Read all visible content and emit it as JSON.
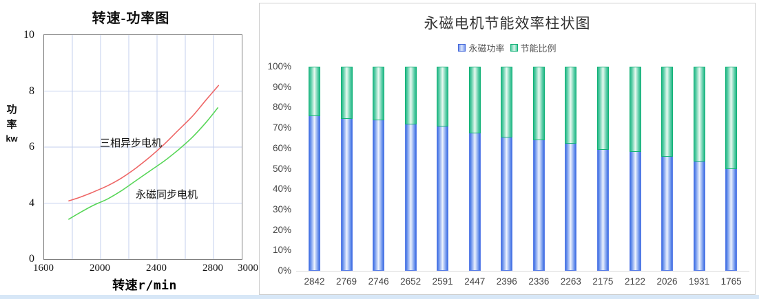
{
  "page": {
    "bottom_strip_color": "#d7e7f7",
    "card_border_color": "#cfcfcf"
  },
  "chart_data": [
    {
      "type": "line",
      "title": "转速-功率图",
      "xlabel": "转速r/min",
      "ylabel": "功率kw",
      "ylabel_chars": [
        "功",
        "率",
        "kw"
      ],
      "xlim": [
        1600,
        3000
      ],
      "x_ticks": [
        1600,
        2000,
        2400,
        2800,
        3000
      ],
      "y_ticks": [
        10,
        8,
        6,
        4,
        0
      ],
      "grid": true,
      "grid_color": "#c3cfee",
      "grid_x_lines": [
        1800,
        2000,
        2200,
        2400,
        2600,
        2800
      ],
      "grid_y_lines": [
        8,
        6,
        4
      ],
      "series": [
        {
          "name": "三相异步电机",
          "color": "#ee6666",
          "x": [
            1775,
            1850,
            1950,
            2050,
            2150,
            2250,
            2350,
            2450,
            2550,
            2650,
            2750,
            2835
          ],
          "y": [
            4.08,
            4.2,
            4.4,
            4.62,
            4.9,
            5.25,
            5.65,
            6.1,
            6.6,
            7.1,
            7.7,
            8.2
          ]
        },
        {
          "name": "永磁同步电机",
          "color": "#58d658",
          "x": [
            1775,
            1850,
            1950,
            2050,
            2150,
            2250,
            2350,
            2450,
            2550,
            2650,
            2750,
            2830
          ],
          "y": [
            2.85,
            3.3,
            3.85,
            4.15,
            4.45,
            4.8,
            5.15,
            5.5,
            5.9,
            6.35,
            6.9,
            7.4
          ]
        }
      ]
    },
    {
      "type": "bar",
      "subtype": "stacked-100",
      "title": "永磁电机节能效率柱状图",
      "categories": [
        "2842",
        "2769",
        "2746",
        "2652",
        "2591",
        "2447",
        "2396",
        "2336",
        "2263",
        "2175",
        "2122",
        "2026",
        "1931",
        "1765"
      ],
      "series": [
        {
          "name": "永磁功率",
          "color": "#3d6de2",
          "values": [
            75.7,
            74.3,
            73.7,
            71.7,
            70.8,
            67.3,
            65.5,
            64.1,
            62.4,
            59.4,
            58.3,
            55.8,
            53.5,
            50.0
          ]
        },
        {
          "name": "节能比例",
          "color": "#28b98a",
          "values": [
            24.3,
            25.7,
            26.3,
            28.3,
            29.2,
            32.7,
            34.5,
            35.9,
            37.6,
            40.6,
            41.7,
            44.2,
            46.5,
            50.0
          ]
        }
      ],
      "y_ticks": [
        "0%",
        "10%",
        "20%",
        "30%",
        "40%",
        "50%",
        "60%",
        "70%",
        "80%",
        "90%",
        "100%"
      ],
      "ylim": [
        0,
        100
      ],
      "grid": false,
      "legend_position": "top"
    }
  ]
}
